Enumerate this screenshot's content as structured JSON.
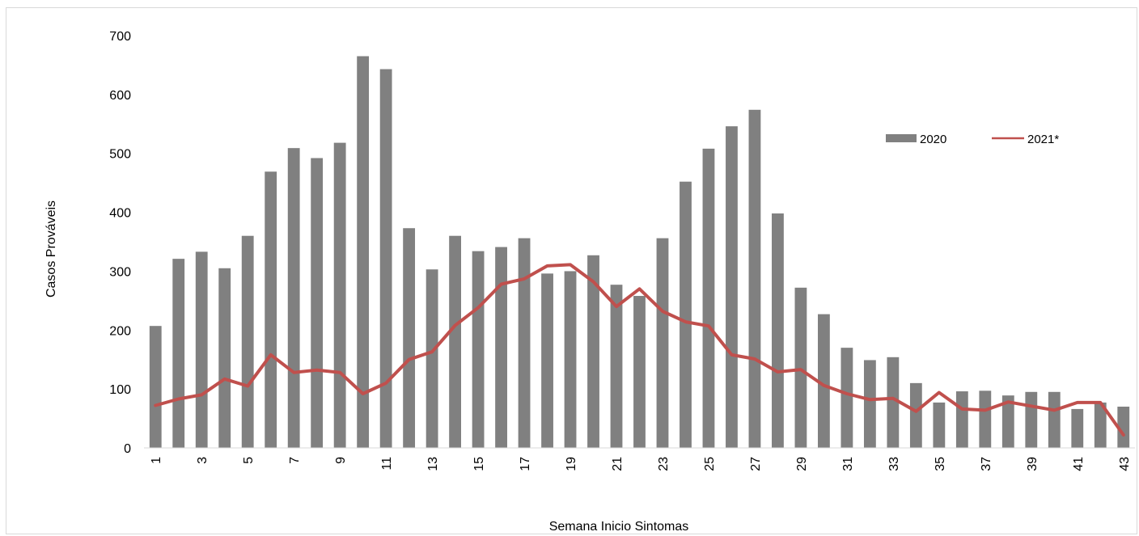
{
  "chart_data": {
    "type": "bar",
    "xlabel": "Semana Inicio Sintomas",
    "ylabel": "Casos Prováveis",
    "ylim": [
      0,
      700
    ],
    "yticks": [
      0,
      100,
      200,
      300,
      400,
      500,
      600,
      700
    ],
    "categories": [
      1,
      2,
      3,
      4,
      5,
      6,
      7,
      8,
      9,
      10,
      11,
      12,
      13,
      14,
      15,
      16,
      17,
      18,
      19,
      20,
      21,
      22,
      23,
      24,
      25,
      26,
      27,
      28,
      29,
      30,
      31,
      32,
      33,
      34,
      35,
      36,
      37,
      38,
      39,
      40,
      41,
      42,
      43
    ],
    "xtick_labels_shown": [
      1,
      3,
      5,
      7,
      9,
      11,
      13,
      15,
      17,
      19,
      21,
      23,
      25,
      27,
      29,
      31,
      33,
      35,
      37,
      39,
      41,
      43
    ],
    "grid": false,
    "legend_position": "top-right",
    "series": [
      {
        "name": "2020",
        "type": "bar",
        "color": "#808080",
        "values": [
          207,
          321,
          333,
          305,
          360,
          469,
          509,
          492,
          518,
          665,
          643,
          373,
          303,
          360,
          334,
          341,
          356,
          296,
          300,
          327,
          277,
          258,
          356,
          452,
          508,
          546,
          574,
          398,
          272,
          227,
          170,
          149,
          154,
          110,
          77,
          96,
          97,
          89,
          95,
          95,
          66,
          77,
          70
        ]
      },
      {
        "name": "2021*",
        "type": "line",
        "color": "#c0504d",
        "values": [
          72,
          83,
          90,
          117,
          105,
          158,
          128,
          132,
          128,
          92,
          110,
          150,
          163,
          208,
          238,
          278,
          287,
          309,
          311,
          282,
          240,
          270,
          232,
          214,
          207,
          158,
          151,
          129,
          133,
          106,
          92,
          82,
          84,
          62,
          94,
          66,
          64,
          78,
          71,
          64,
          77,
          77,
          22
        ]
      }
    ]
  }
}
